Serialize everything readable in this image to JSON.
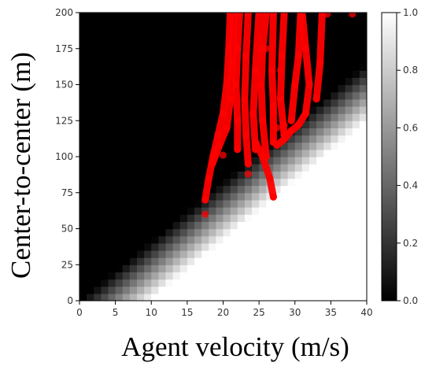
{
  "chart_data": {
    "type": "heatmap",
    "title": "",
    "xlabel": "Agent velocity (m/s)",
    "ylabel": "Center-to-center (m)",
    "xlim": [
      0,
      40
    ],
    "ylim": [
      0,
      200
    ],
    "xticks": [
      "0",
      "5",
      "10",
      "15",
      "20",
      "25",
      "30",
      "35",
      "40"
    ],
    "yticks": [
      "0",
      "25",
      "50",
      "75",
      "100",
      "125",
      "150",
      "175",
      "200"
    ],
    "colormap": "gray",
    "colorbar": {
      "range": [
        0.0,
        1.0
      ],
      "ticks": [
        "0.0",
        "0.2",
        "0.4",
        "0.6",
        "0.8",
        "1.0"
      ]
    },
    "heatmap_model": {
      "description_of_field": "value 1 below boundary, 0 above, linear transition band",
      "boundary_points": [
        [
          0,
          0
        ],
        [
          40,
          165
        ]
      ],
      "transition_band_m": 40
    },
    "overlay": {
      "type": "scatter-trajectories",
      "color": "#ff0000",
      "trajectories": [
        [
          [
            17.5,
            70
          ],
          [
            18.0,
            85
          ],
          [
            18.6,
            100
          ],
          [
            19.3,
            115
          ],
          [
            20.0,
            130
          ],
          [
            20.5,
            150
          ],
          [
            20.8,
            175
          ],
          [
            21.0,
            200
          ]
        ],
        [
          [
            18.5,
            95
          ],
          [
            19.5,
            108
          ],
          [
            20.5,
            120
          ],
          [
            21.0,
            140
          ],
          [
            21.3,
            165
          ],
          [
            21.5,
            200
          ]
        ],
        [
          [
            22.0,
            105
          ],
          [
            22.0,
            125
          ],
          [
            21.8,
            150
          ],
          [
            22.0,
            175
          ],
          [
            22.3,
            200
          ]
        ],
        [
          [
            23.5,
            95
          ],
          [
            23.2,
            115
          ],
          [
            23.0,
            140
          ],
          [
            23.2,
            170
          ],
          [
            23.5,
            200
          ]
        ],
        [
          [
            24.5,
            105
          ],
          [
            24.2,
            130
          ],
          [
            24.5,
            160
          ],
          [
            25.0,
            200
          ]
        ],
        [
          [
            26.0,
            100
          ],
          [
            25.5,
            125
          ],
          [
            25.3,
            150
          ],
          [
            25.5,
            175
          ],
          [
            26.0,
            200
          ]
        ],
        [
          [
            24.5,
            110
          ],
          [
            25.5,
            100
          ],
          [
            26.5,
            85
          ],
          [
            27.0,
            72
          ]
        ],
        [
          [
            27.0,
            110
          ],
          [
            27.0,
            135
          ],
          [
            26.8,
            160
          ],
          [
            27.0,
            200
          ]
        ],
        [
          [
            28.5,
            115
          ],
          [
            28.0,
            140
          ],
          [
            28.2,
            170
          ],
          [
            28.5,
            200
          ]
        ],
        [
          [
            27.5,
            108
          ],
          [
            28.5,
            112
          ],
          [
            29.5,
            118
          ],
          [
            30.5,
            122
          ],
          [
            31.5,
            130
          ],
          [
            32.0,
            150
          ],
          [
            31.5,
            175
          ],
          [
            31.0,
            200
          ]
        ],
        [
          [
            29.5,
            125
          ],
          [
            30.0,
            150
          ],
          [
            30.5,
            170
          ],
          [
            30.8,
            200
          ]
        ],
        [
          [
            33.0,
            140
          ],
          [
            33.5,
            165
          ],
          [
            33.8,
            200
          ]
        ]
      ],
      "points": [
        [
          17.5,
          60
        ],
        [
          20.0,
          101
        ],
        [
          23.5,
          88
        ],
        [
          27.5,
          120
        ],
        [
          28.5,
          122
        ],
        [
          27.0,
          130
        ],
        [
          28.0,
          160
        ],
        [
          26.0,
          175
        ],
        [
          34.5,
          199
        ],
        [
          38.0,
          199
        ]
      ]
    }
  }
}
